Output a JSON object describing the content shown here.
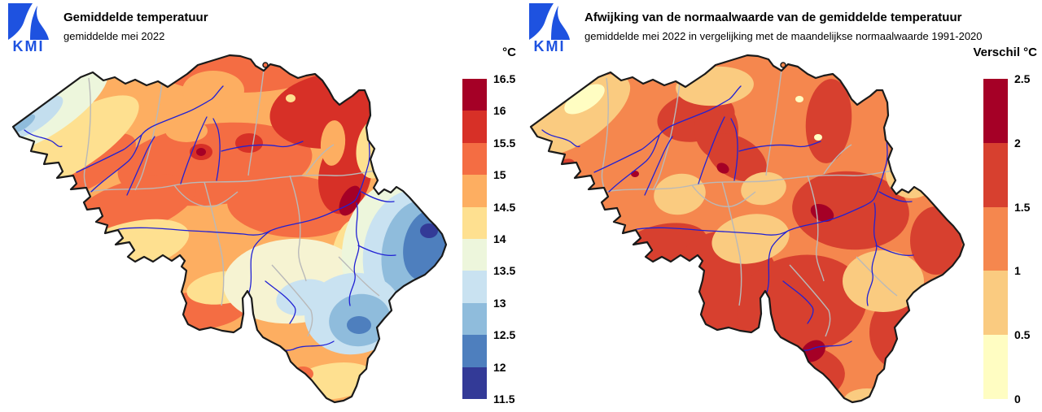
{
  "panels": {
    "left": {
      "logo_text": "KMI",
      "title": "Gemiddelde temperatuur",
      "subtitle": "gemiddelde mei 2022",
      "legend": {
        "title": "°C",
        "ticks": [
          "16.5",
          "16",
          "15.5",
          "15",
          "14.5",
          "14",
          "13.5",
          "13",
          "12.5",
          "12",
          "11.5"
        ],
        "band_colors": [
          "#A50026",
          "#D73027",
          "#F46D43",
          "#FDAE61",
          "#FEE090",
          "#EDF6DC",
          "#C9E2F1",
          "#8FBCDC",
          "#4E7FBE",
          "#333A97"
        ]
      }
    },
    "right": {
      "logo_text": "KMI",
      "title": "Afwijking van de normaalwaarde van de gemiddelde temperatuur",
      "subtitle": "gemiddelde mei 2022 in vergelijking met de maandelijkse normaalwaarde 1991-2020",
      "legend": {
        "title": "Verschil °C",
        "ticks": [
          "2.5",
          "2",
          "1.5",
          "1",
          "0.5",
          "0"
        ],
        "band_colors": [
          "#A50026",
          "#D7402F",
          "#F5874E",
          "#FACB80",
          "#FFFDC2"
        ]
      }
    }
  },
  "map": {
    "region": "België",
    "outline_color": "#1a1a1a",
    "river_color": "#2121D4",
    "province_border_color": "#b9b9b9",
    "logo_blue": "#1E52E0"
  },
  "chart_data": [
    {
      "type": "heatmap",
      "title": "Gemiddelde temperatuur",
      "subtitle": "gemiddelde mei 2022",
      "unit": "°C",
      "scale_min": 11.5,
      "scale_max": 16.5,
      "scale_step": 0.5,
      "legend_values_top_to_bottom": [
        16.5,
        16,
        15.5,
        15,
        14.5,
        14,
        13.5,
        13,
        12.5,
        12,
        11.5
      ],
      "palette_top_to_bottom": [
        "#A50026",
        "#D73027",
        "#F46D43",
        "#FDAE61",
        "#FEE090",
        "#EDF6DC",
        "#C9E2F1",
        "#8FBCDC",
        "#4E7FBE",
        "#333A97"
      ],
      "legend_position": "right",
      "notes": "Warmest (15.5-16.5 °C) in the northeast (Kempen/Limburg) and the Meuse valley near Liège; mildest (13.5-14.5 °C) along the coast and southwest; coolest (11.5-13 °C) in the southeastern Ardennes / Hoge Venen."
    },
    {
      "type": "heatmap",
      "title": "Afwijking van de normaalwaarde van de gemiddelde temperatuur",
      "subtitle": "gemiddelde mei 2022 in vergelijking met de maandelijkse normaalwaarde 1991-2020",
      "unit": "Verschil °C",
      "scale_min": 0,
      "scale_max": 2.5,
      "scale_step": 0.5,
      "legend_values_top_to_bottom": [
        2.5,
        2,
        1.5,
        1,
        0.5,
        0
      ],
      "palette_top_to_bottom": [
        "#A50026",
        "#D7402F",
        "#F5874E",
        "#FACB80",
        "#FFFDC2"
      ],
      "legend_position": "right",
      "notes": "Entire country warmer than normal: mostly +1 to +1.5 °C; +1.5 to +2.5 °C in central Belgium, the south and east; smallest anomaly (0 to +1 °C) at the coast and locally in the centre."
    }
  ]
}
